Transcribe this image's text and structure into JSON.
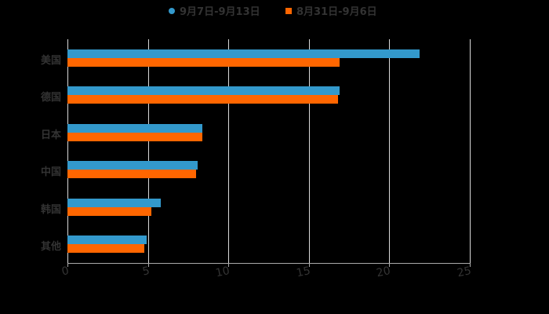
{
  "chart_data": {
    "type": "bar",
    "orientation": "horizontal",
    "title": "",
    "xlabel": "",
    "ylabel": "",
    "xlim": [
      0,
      25
    ],
    "x_ticks": [
      "0",
      "5",
      "10",
      "15",
      "20",
      "25"
    ],
    "categories": [
      "美国",
      "德国",
      "日本",
      "中国",
      "韩国",
      "其他"
    ],
    "series": [
      {
        "name": "9月7日-9月13日",
        "color": "#3399cc",
        "values": [
          21.9,
          16.9,
          8.4,
          8.1,
          5.8,
          4.9
        ]
      },
      {
        "name": "8月31日-9月6日",
        "color": "#ff6600",
        "values": [
          16.9,
          16.8,
          8.4,
          8.0,
          5.2,
          4.8
        ]
      }
    ],
    "grid": true,
    "legend_position": "top"
  },
  "legend": {
    "items": [
      {
        "label": "9月7日-9月13日",
        "color": "#3399cc",
        "marker": "circle"
      },
      {
        "label": "8月31日-9月6日",
        "color": "#ff6600",
        "marker": "square"
      }
    ]
  }
}
